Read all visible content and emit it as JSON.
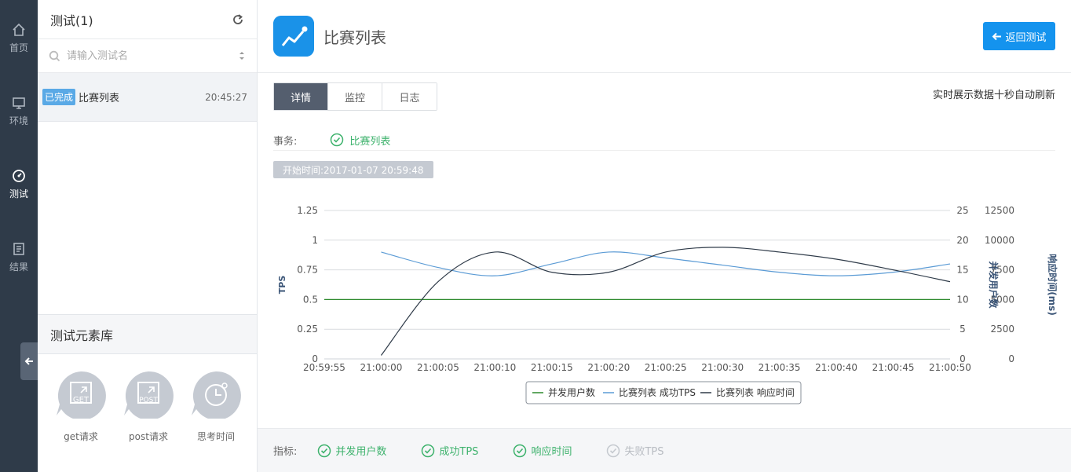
{
  "nav": {
    "items": [
      {
        "label": "首页",
        "icon": "home-icon"
      },
      {
        "label": "环境",
        "icon": "monitor-icon"
      },
      {
        "label": "测试",
        "icon": "gauge-icon"
      },
      {
        "label": "结果",
        "icon": "document-icon"
      }
    ],
    "active": "测试"
  },
  "panel": {
    "title": "测试(1)",
    "search_placeholder": "请输入测试名",
    "tests": [
      {
        "status": "已完成",
        "name": "比赛列表",
        "time": "20:45:27"
      }
    ],
    "library": {
      "title": "测试元素库",
      "items": [
        {
          "label": "get请求",
          "icon_text": "GET"
        },
        {
          "label": "post请求",
          "icon_text": "POST"
        },
        {
          "label": "思考时间",
          "icon_text": ""
        }
      ]
    }
  },
  "header": {
    "title": "比赛列表",
    "back_label": "返回测试"
  },
  "tabs": [
    "详情",
    "监控",
    "日志"
  ],
  "realtime_note": "实时展示数据十秒自动刷新",
  "transaction": {
    "label": "事务:",
    "value": "比赛列表"
  },
  "start_time": "开始时间:2017-01-07 20:59:48",
  "metrics": {
    "label": "指标:",
    "items": [
      {
        "label": "并发用户数",
        "enabled": true
      },
      {
        "label": "成功TPS",
        "enabled": true
      },
      {
        "label": "响应时间",
        "enabled": true
      },
      {
        "label": "失败TPS",
        "enabled": false
      }
    ]
  },
  "colors": {
    "accent": "#1493ee",
    "success": "#3db26c",
    "nav_bg": "#2f3b49",
    "users_line": "#2e8b2e",
    "tps_line": "#5b9bd5",
    "rt_line": "#2f3b49"
  },
  "chart_data": {
    "type": "line",
    "x": [
      "20:59:55",
      "21:00:00",
      "21:00:05",
      "21:00:10",
      "21:00:15",
      "21:00:20",
      "21:00:25",
      "21:00:30",
      "21:00:35",
      "21:00:40",
      "21:00:45",
      "21:00:50"
    ],
    "axes": {
      "left": {
        "label": "TPS",
        "ticks": [
          "0",
          "0.25",
          "0.5",
          "0.75",
          "1",
          "1.25"
        ],
        "range": [
          0,
          1.25
        ]
      },
      "right1": {
        "label": "并发用户数",
        "ticks": [
          "0",
          "5",
          "10",
          "15",
          "20",
          "25"
        ],
        "range": [
          0,
          25
        ]
      },
      "right2": {
        "label": "响应时间(ms)",
        "ticks": [
          "0",
          "2500",
          "5000",
          "7500",
          "10000",
          "12500"
        ],
        "range": [
          0,
          12500
        ]
      }
    },
    "series": [
      {
        "name": "并发用户数",
        "axis": "right1",
        "values": [
          10,
          10,
          10,
          10,
          10,
          10,
          10,
          10,
          10,
          10,
          10,
          10
        ]
      },
      {
        "name": "比赛列表 成功TPS",
        "axis": "left",
        "values": [
          null,
          0.9,
          0.77,
          0.7,
          0.8,
          0.9,
          0.85,
          0.79,
          0.73,
          0.7,
          0.73,
          0.8
        ]
      },
      {
        "name": "比赛列表 响应时间",
        "axis": "right2",
        "values": [
          null,
          300,
          6500,
          9000,
          7300,
          7300,
          9000,
          9400,
          9000,
          8400,
          7500,
          6500
        ]
      }
    ],
    "legend": "bottom-center",
    "grid": true
  }
}
